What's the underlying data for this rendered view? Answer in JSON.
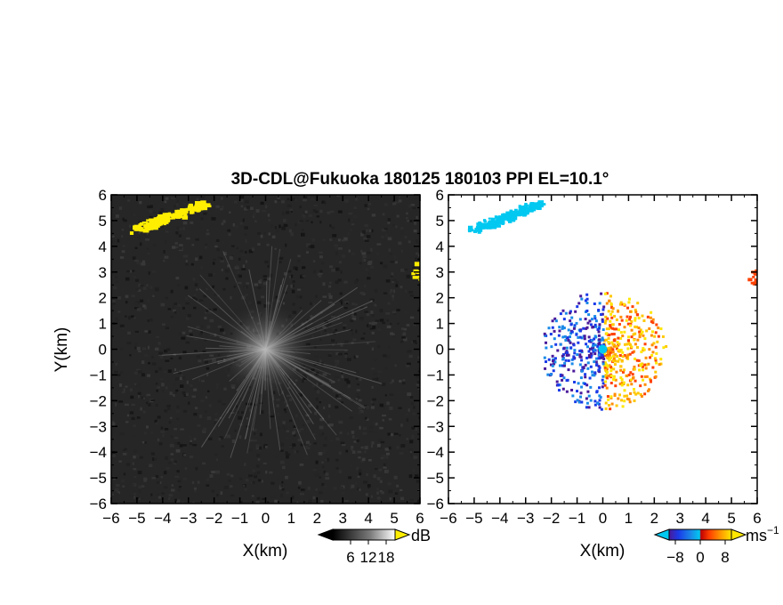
{
  "chart_data": [
    {
      "type": "heatmap",
      "panel": "reflectivity",
      "title": "3D-CDL@Fukuoka 180125 180103 PPI EL=10.1°",
      "xlabel": "X(km)",
      "ylabel": "Y(km)",
      "xlim": [
        -6,
        6
      ],
      "ylim": [
        -6,
        6
      ],
      "x_ticks": [
        "−6",
        "−5",
        "−4",
        "−3",
        "−2",
        "−1",
        "0",
        "1",
        "2",
        "3",
        "4",
        "5",
        "6"
      ],
      "y_ticks": [
        "6",
        "5",
        "4",
        "3",
        "2",
        "1",
        "0",
        "−1",
        "−2",
        "−3",
        "−4",
        "−5",
        "−6"
      ],
      "colorbar": {
        "unit": "dB",
        "ticks": [
          "6",
          "12",
          "18"
        ],
        "range": [
          0,
          21
        ]
      },
      "features": [
        {
          "label": "echo band",
          "center_km": [
            -3.8,
            5.2
          ],
          "value_db": 19
        },
        {
          "label": "edge echo",
          "center_km": [
            5.9,
            3.0
          ],
          "value_db": 19
        },
        {
          "label": "near-field returns",
          "center_km": [
            0,
            0
          ],
          "value_db": 10
        }
      ]
    },
    {
      "type": "heatmap",
      "panel": "doppler_velocity",
      "xlabel": "X(km)",
      "xlim": [
        -6,
        6
      ],
      "ylim": [
        -6,
        6
      ],
      "x_ticks": [
        "−6",
        "−5",
        "−4",
        "−3",
        "−2",
        "−1",
        "0",
        "1",
        "2",
        "3",
        "4",
        "5",
        "6"
      ],
      "y_ticks": [
        "6",
        "5",
        "4",
        "3",
        "2",
        "1",
        "0",
        "−1",
        "−2",
        "−3",
        "−4",
        "−5",
        "−6"
      ],
      "colorbar": {
        "unit": "ms",
        "unit_exp": "−1",
        "ticks": [
          "−8",
          "0",
          "8"
        ],
        "range": [
          -10,
          10
        ]
      },
      "features": [
        {
          "label": "echo band",
          "center_km": [
            -3.8,
            5.2
          ],
          "value_ms": -6
        },
        {
          "label": "edge echo",
          "center_km": [
            5.9,
            3.0
          ],
          "value_ms": 6
        },
        {
          "label": "near-field returns",
          "center_km": [
            0,
            0
          ],
          "west_value_ms": -7,
          "east_value_ms": 5
        }
      ]
    }
  ],
  "colors": {
    "radar_background": "#262626",
    "velocity_palette": [
      "#4a1a9a",
      "#1a3ae8",
      "#1a8ae8",
      "#00c8f0",
      "#c00000",
      "#ff4000",
      "#ff8c00",
      "#ffc800",
      "#ffe600"
    ],
    "echo_yellow": "#ffee00"
  }
}
